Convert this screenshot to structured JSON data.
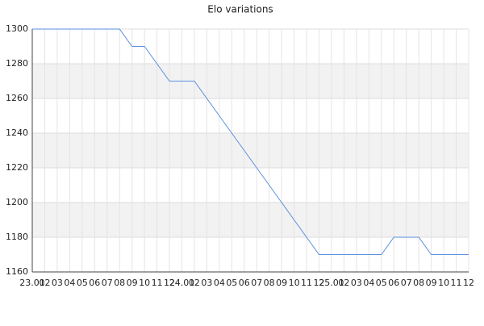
{
  "chart_data": {
    "type": "line",
    "title": "Elo variations",
    "categories": [
      "23.01",
      "02",
      "03",
      "04",
      "05",
      "06",
      "07",
      "08",
      "09",
      "10",
      "11",
      "12",
      "24.01",
      "02",
      "03",
      "04",
      "05",
      "06",
      "07",
      "08",
      "09",
      "10",
      "11",
      "12",
      "25.01",
      "02",
      "03",
      "04",
      "05",
      "06",
      "07",
      "08",
      "09",
      "10",
      "11",
      "12"
    ],
    "series": [
      {
        "name": "Elo",
        "color": "#5b8fe0",
        "values": [
          1300,
          1300,
          1300,
          1300,
          1300,
          1300,
          1300,
          1300,
          1290,
          1290,
          1280,
          1270,
          1270,
          1270,
          1260,
          1250,
          1240,
          1230,
          1220,
          1210,
          1200,
          1190,
          1180,
          1170,
          1170,
          1170,
          1170,
          1170,
          1170,
          1180,
          1180,
          1180,
          1170,
          1170,
          1170,
          1170
        ]
      }
    ],
    "ylim": [
      1160,
      1300
    ],
    "yticks": [
      1160,
      1180,
      1200,
      1220,
      1240,
      1260,
      1280,
      1300
    ],
    "grid": true
  }
}
